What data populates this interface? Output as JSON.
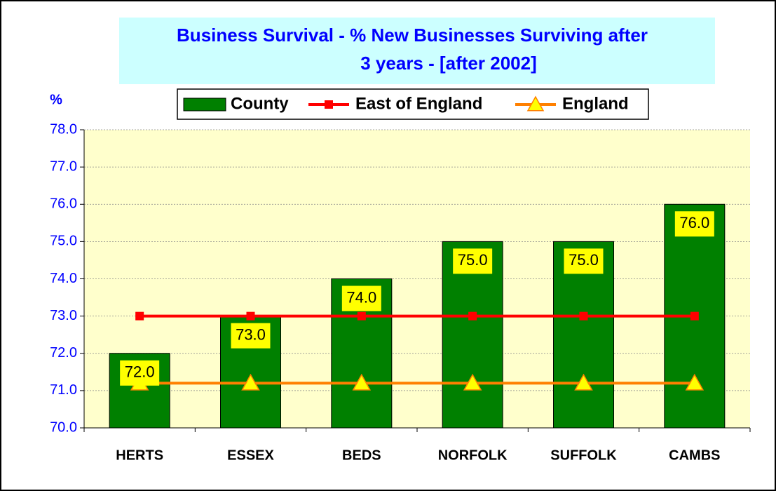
{
  "chart_data": {
    "type": "bar",
    "title": [
      "Business Survival - % New Businesses Surviving after",
      "3 years  - [after 2002]"
    ],
    "ylabel": "%",
    "categories": [
      "HERTS",
      "ESSEX",
      "BEDS",
      "NORFOLK",
      "SUFFOLK",
      "CAMBS"
    ],
    "series": [
      {
        "name": "County",
        "type": "bar",
        "color": "#008000",
        "values": [
          72,
          73,
          74,
          75,
          75,
          76
        ],
        "value_labels": [
          "72.0",
          "73.0",
          "74.0",
          "75.0",
          "75.0",
          "76.0"
        ]
      },
      {
        "name": "East of England",
        "type": "line",
        "marker": "square",
        "color": "#ff0000",
        "values": [
          73,
          73,
          73,
          73,
          73,
          73
        ]
      },
      {
        "name": "England",
        "type": "line",
        "marker": "triangle",
        "color": "#ff8000",
        "values": [
          71.2,
          71.2,
          71.2,
          71.2,
          71.2,
          71.2
        ]
      }
    ],
    "ylim": [
      70,
      78
    ],
    "yticks": [
      {
        "value": 70,
        "label": "70.0"
      },
      {
        "value": 71,
        "label": "71.0"
      },
      {
        "value": 72,
        "label": "72.0"
      },
      {
        "value": 73,
        "label": "73.0"
      },
      {
        "value": 74,
        "label": "74.0"
      },
      {
        "value": 75,
        "label": "75.0"
      },
      {
        "value": 76,
        "label": "76.0"
      },
      {
        "value": 77,
        "label": "77.0"
      },
      {
        "value": 78,
        "label": "78.0"
      }
    ],
    "grid": true
  }
}
